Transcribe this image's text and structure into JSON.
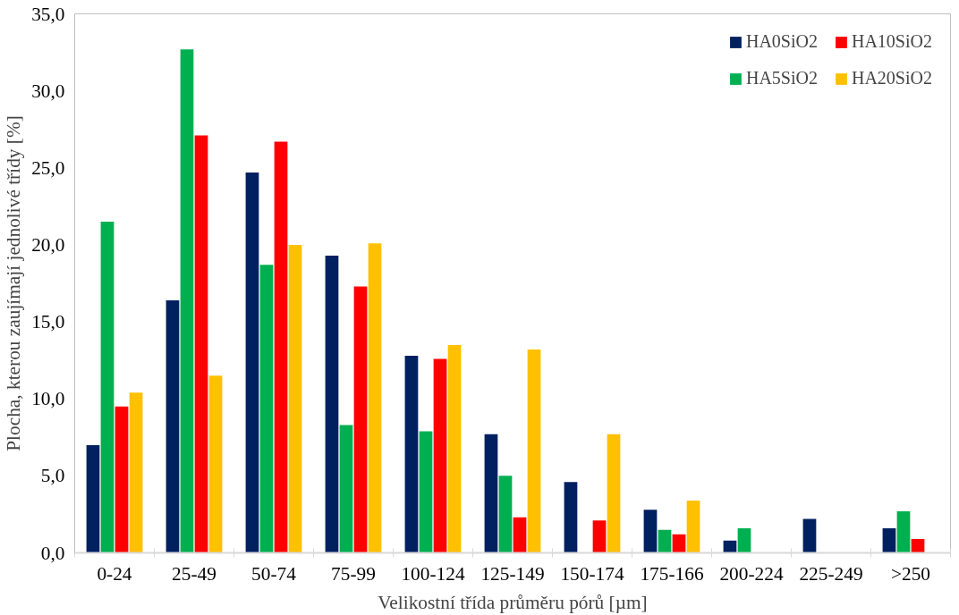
{
  "chart_data": {
    "type": "bar",
    "xlabel": "Velikostní třída průměru pórů [µm]",
    "ylabel": "Plocha, kterou zaujímají jednolivé třídy [%]",
    "categories": [
      "0-24",
      "25-49",
      "50-74",
      "75-99",
      "100-124",
      "125-149",
      "150-174",
      "175-166",
      "200-224",
      "225-249",
      ">250"
    ],
    "series": [
      {
        "name": "HA0SiO2",
        "color": "#002060",
        "values": [
          7.0,
          16.4,
          24.7,
          19.3,
          12.8,
          7.7,
          4.6,
          2.8,
          0.8,
          2.2,
          1.6
        ]
      },
      {
        "name": "HA5SiO2",
        "color": "#00b050",
        "values": [
          21.5,
          32.7,
          18.7,
          8.3,
          7.9,
          5.0,
          null,
          1.5,
          1.6,
          null,
          2.7
        ]
      },
      {
        "name": "HA10SiO2",
        "color": "#ff0000",
        "values": [
          9.5,
          27.1,
          26.7,
          17.3,
          12.6,
          2.3,
          2.1,
          1.2,
          null,
          null,
          0.9
        ]
      },
      {
        "name": "HA20SiO2",
        "color": "#ffc000",
        "values": [
          10.4,
          11.5,
          20.0,
          20.1,
          13.5,
          13.2,
          7.7,
          3.4,
          null,
          null,
          null
        ]
      }
    ],
    "ylim": [
      0,
      35
    ],
    "yticks": [
      {
        "value": 0,
        "label": "0,0"
      },
      {
        "value": 5,
        "label": "5,0"
      },
      {
        "value": 10,
        "label": "10,0"
      },
      {
        "value": 15,
        "label": "15,0"
      },
      {
        "value": 20,
        "label": "20,0"
      },
      {
        "value": 25,
        "label": "25,0"
      },
      {
        "value": 30,
        "label": "30,0"
      },
      {
        "value": 35,
        "label": "35,0"
      }
    ],
    "grid": false,
    "legend": "top right"
  }
}
